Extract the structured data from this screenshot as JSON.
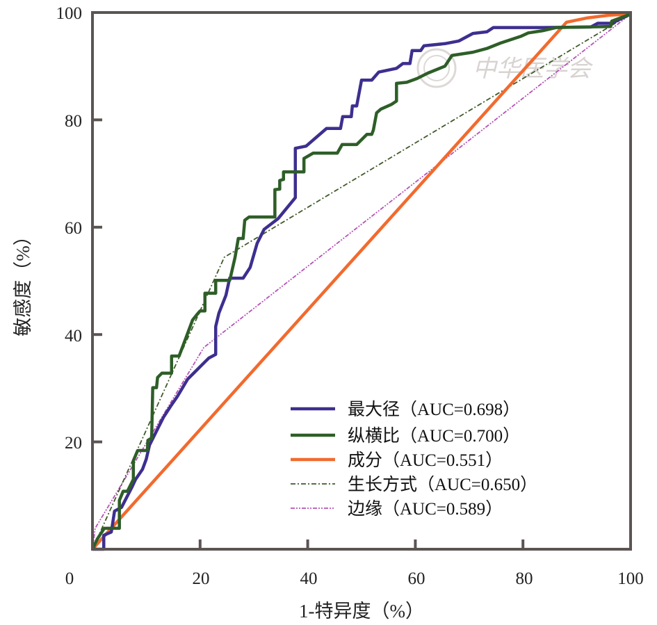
{
  "chart_data": {
    "type": "line",
    "title": "",
    "xlabel": "1-特异度（%）",
    "ylabel": "敏感度（%）",
    "xlim": [
      0,
      100
    ],
    "ylim": [
      0,
      100
    ],
    "xticks": [
      "0",
      "20",
      "40",
      "60",
      "80",
      "100"
    ],
    "yticks": [
      "20",
      "40",
      "60",
      "80",
      "100"
    ],
    "grid": false,
    "legend_position": "bottom-right",
    "watermark": "中华医学会",
    "series": [
      {
        "name": "最大径（AUC=0.698）",
        "color": "#3d2f8f",
        "style": "solid",
        "points": [
          [
            0,
            0
          ],
          [
            2.1,
            0
          ],
          [
            2.1,
            2.6
          ],
          [
            3.5,
            3.2
          ],
          [
            4.1,
            7.1
          ],
          [
            5.4,
            7.8
          ],
          [
            7.4,
            11.7
          ],
          [
            8.0,
            13.0
          ],
          [
            9.3,
            14.9
          ],
          [
            10.0,
            16.8
          ],
          [
            10.6,
            19.4
          ],
          [
            11.9,
            22.0
          ],
          [
            13.2,
            24.6
          ],
          [
            14.5,
            26.6
          ],
          [
            15.8,
            28.5
          ],
          [
            17.7,
            31.7
          ],
          [
            19.0,
            33.0
          ],
          [
            20.3,
            34.3
          ],
          [
            21.6,
            35.6
          ],
          [
            22.9,
            36.3
          ],
          [
            22.9,
            41.5
          ],
          [
            23.5,
            44.0
          ],
          [
            24.8,
            47.3
          ],
          [
            25.5,
            50.5
          ],
          [
            28.0,
            50.5
          ],
          [
            29.3,
            52.5
          ],
          [
            30.6,
            57.0
          ],
          [
            31.9,
            59.6
          ],
          [
            34.5,
            61.6
          ],
          [
            37.7,
            65.5
          ],
          [
            37.7,
            74.7
          ],
          [
            39.7,
            75.1
          ],
          [
            43.5,
            78.4
          ],
          [
            46.1,
            78.4
          ],
          [
            46.5,
            80.6
          ],
          [
            48.1,
            80.6
          ],
          [
            48.3,
            82.6
          ],
          [
            49.1,
            82.6
          ],
          [
            50.0,
            87.4
          ],
          [
            51.9,
            87.4
          ],
          [
            53.2,
            88.9
          ],
          [
            56.5,
            89.6
          ],
          [
            57.7,
            90.5
          ],
          [
            59.0,
            90.5
          ],
          [
            59.4,
            92.9
          ],
          [
            61.0,
            92.9
          ],
          [
            61.6,
            93.8
          ],
          [
            65.5,
            94.2
          ],
          [
            68.1,
            94.7
          ],
          [
            70.7,
            96.1
          ],
          [
            73.3,
            96.4
          ],
          [
            74.5,
            97.2
          ],
          [
            83.6,
            97.2
          ],
          [
            92.6,
            97.3
          ],
          [
            93.9,
            98.0
          ],
          [
            96.5,
            98.0
          ],
          [
            100,
            99.7
          ]
        ]
      },
      {
        "name": "纵横比（AUC=0.700）",
        "color": "#2e5e28",
        "style": "solid",
        "points": [
          [
            0,
            0
          ],
          [
            0.9,
            1.9
          ],
          [
            2.2,
            3.9
          ],
          [
            5.0,
            3.9
          ],
          [
            5.0,
            9.1
          ],
          [
            5.7,
            10.8
          ],
          [
            6.5,
            10.8
          ],
          [
            7.6,
            13.0
          ],
          [
            7.6,
            16.5
          ],
          [
            8.4,
            18.4
          ],
          [
            10.2,
            18.4
          ],
          [
            10.3,
            20.3
          ],
          [
            11.0,
            20.7
          ],
          [
            11.2,
            30.1
          ],
          [
            11.9,
            30.1
          ],
          [
            12.1,
            32.0
          ],
          [
            12.9,
            32.8
          ],
          [
            14.7,
            32.8
          ],
          [
            14.7,
            36.0
          ],
          [
            16.1,
            36.0
          ],
          [
            17.3,
            39.2
          ],
          [
            18.6,
            42.7
          ],
          [
            19.4,
            43.7
          ],
          [
            20.0,
            44.4
          ],
          [
            20.9,
            44.4
          ],
          [
            20.9,
            47.7
          ],
          [
            22.9,
            47.7
          ],
          [
            22.9,
            50.1
          ],
          [
            25.5,
            50.1
          ],
          [
            25.7,
            50.9
          ],
          [
            26.5,
            54.4
          ],
          [
            27.1,
            57.9
          ],
          [
            28.0,
            57.9
          ],
          [
            28.3,
            61.3
          ],
          [
            29.1,
            61.9
          ],
          [
            33.9,
            61.9
          ],
          [
            33.9,
            67.0
          ],
          [
            34.8,
            67.1
          ],
          [
            34.8,
            68.7
          ],
          [
            35.5,
            68.9
          ],
          [
            35.5,
            70.3
          ],
          [
            39.3,
            70.3
          ],
          [
            39.3,
            72.8
          ],
          [
            41.0,
            73.8
          ],
          [
            45.5,
            73.8
          ],
          [
            46.4,
            75.4
          ],
          [
            49.1,
            75.4
          ],
          [
            51.0,
            77.3
          ],
          [
            51.9,
            77.3
          ],
          [
            52.2,
            78.1
          ],
          [
            52.8,
            81.3
          ],
          [
            53.6,
            82.0
          ],
          [
            55.6,
            82.9
          ],
          [
            56.5,
            83.5
          ],
          [
            56.5,
            86.8
          ],
          [
            58.4,
            87.0
          ],
          [
            60.3,
            87.7
          ],
          [
            62.3,
            88.7
          ],
          [
            65.5,
            90.0
          ],
          [
            66.8,
            92.0
          ],
          [
            70.7,
            92.6
          ],
          [
            73.3,
            93.3
          ],
          [
            75.8,
            94.3
          ],
          [
            79.7,
            95.6
          ],
          [
            81.0,
            96.2
          ],
          [
            83.6,
            96.6
          ],
          [
            86.2,
            97.2
          ],
          [
            96.3,
            97.4
          ],
          [
            96.5,
            98.4
          ],
          [
            100,
            99.7
          ]
        ]
      },
      {
        "name": "成分（AUC=0.551）",
        "color": "#f26a2e",
        "style": "solid",
        "points": [
          [
            0,
            0
          ],
          [
            88.1,
            98.2
          ],
          [
            92,
            99
          ],
          [
            96,
            99.5
          ],
          [
            100,
            99.7
          ]
        ]
      },
      {
        "name": "生长方式（AUC=0.650）",
        "color": "#3f5a2a",
        "style": "dashdot",
        "points": [
          [
            0,
            0
          ],
          [
            24.5,
            54.4
          ],
          [
            100,
            99.7
          ]
        ]
      },
      {
        "name": "边缘（AUC=0.589）",
        "color": "#b552b8",
        "style": "dashdotdot",
        "points": [
          [
            0,
            0
          ],
          [
            0.5,
            3.9
          ],
          [
            20.7,
            37.6
          ],
          [
            100,
            99.7
          ]
        ]
      }
    ]
  }
}
